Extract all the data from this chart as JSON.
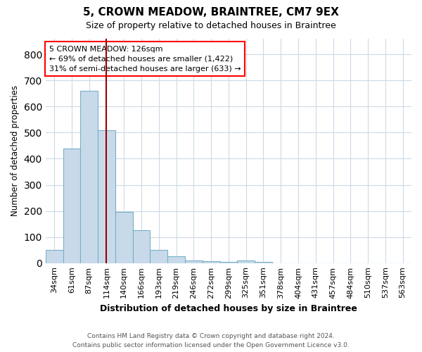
{
  "title_line1": "5, CROWN MEADOW, BRAINTREE, CM7 9EX",
  "title_line2": "Size of property relative to detached houses in Braintree",
  "xlabel": "Distribution of detached houses by size in Braintree",
  "ylabel": "Number of detached properties",
  "bar_labels": [
    "34sqm",
    "61sqm",
    "87sqm",
    "114sqm",
    "140sqm",
    "166sqm",
    "193sqm",
    "219sqm",
    "246sqm",
    "272sqm",
    "299sqm",
    "325sqm",
    "351sqm",
    "378sqm",
    "404sqm",
    "431sqm",
    "457sqm",
    "484sqm",
    "510sqm",
    "537sqm",
    "563sqm"
  ],
  "bar_values": [
    50,
    440,
    660,
    510,
    195,
    125,
    50,
    25,
    10,
    8,
    5,
    10,
    5,
    0,
    0,
    0,
    0,
    0,
    0,
    0,
    0
  ],
  "bar_color": "#c8daea",
  "bar_edge_color": "#7aafc8",
  "annotation_line1": "5 CROWN MEADOW: 126sqm",
  "annotation_line2": "← 69% of detached houses are smaller (1,422)",
  "annotation_line3": "31% of semi-detached houses are larger (633) →",
  "annotation_box_color": "white",
  "annotation_box_edge_color": "red",
  "ylim": [
    0,
    860
  ],
  "yticks": [
    0,
    100,
    200,
    300,
    400,
    500,
    600,
    700,
    800
  ],
  "footer_line1": "Contains HM Land Registry data © Crown copyright and database right 2024.",
  "footer_line2": "Contains public sector information licensed under the Open Government Licence v3.0.",
  "bg_color": "white",
  "grid_color": "#ccdae6"
}
